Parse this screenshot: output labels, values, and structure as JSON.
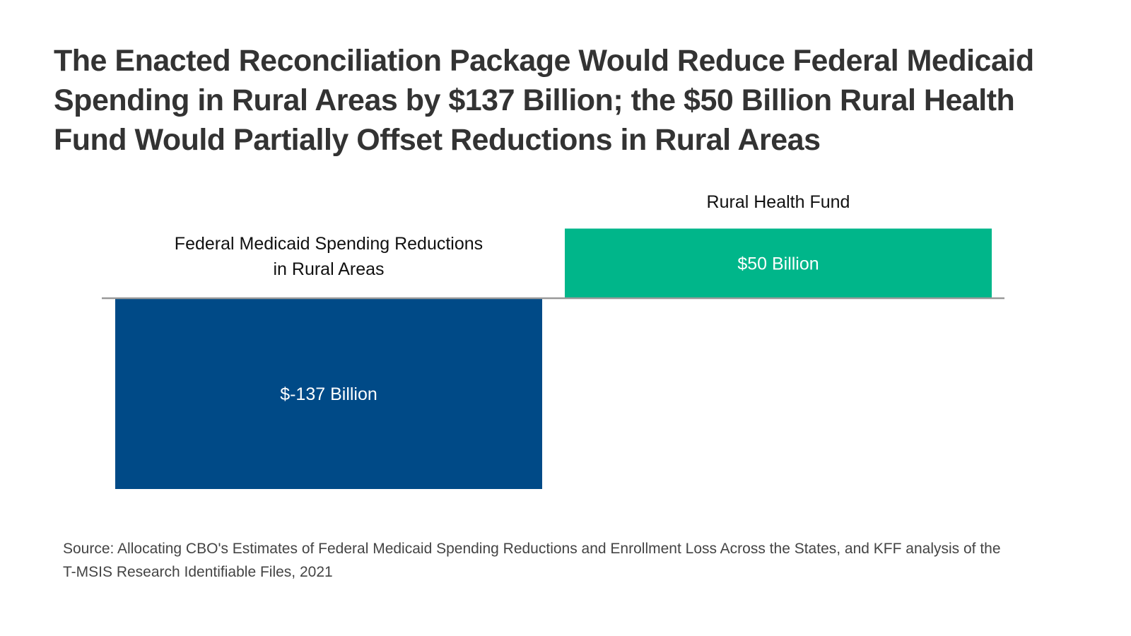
{
  "chart_data": {
    "type": "bar",
    "title": "The Enacted Reconciliation Package Would Reduce Federal Medicaid Spending in Rural Areas by $137 Billion; the $50 Billion Rural Health Fund Would Partially Offset Reductions in Rural Areas",
    "categories": [
      [
        "Federal Medicaid Spending Reductions",
        "in Rural Areas"
      ],
      [
        "Rural Health Fund"
      ]
    ],
    "values": [
      -137,
      50
    ],
    "data_labels": [
      "$-137 Billion",
      "$50 Billion"
    ],
    "colors": [
      "#004a87",
      "#00b68a"
    ],
    "units": "Billion dollars",
    "ylim": [
      -137,
      50
    ],
    "grid": false,
    "axis_line_color": "#999999",
    "source": "Source: Allocating CBO's Estimates of Federal Medicaid Spending Reductions and Enrollment Loss Across the States, and KFF analysis of the T-MSIS Research Identifiable Files, 2021"
  }
}
